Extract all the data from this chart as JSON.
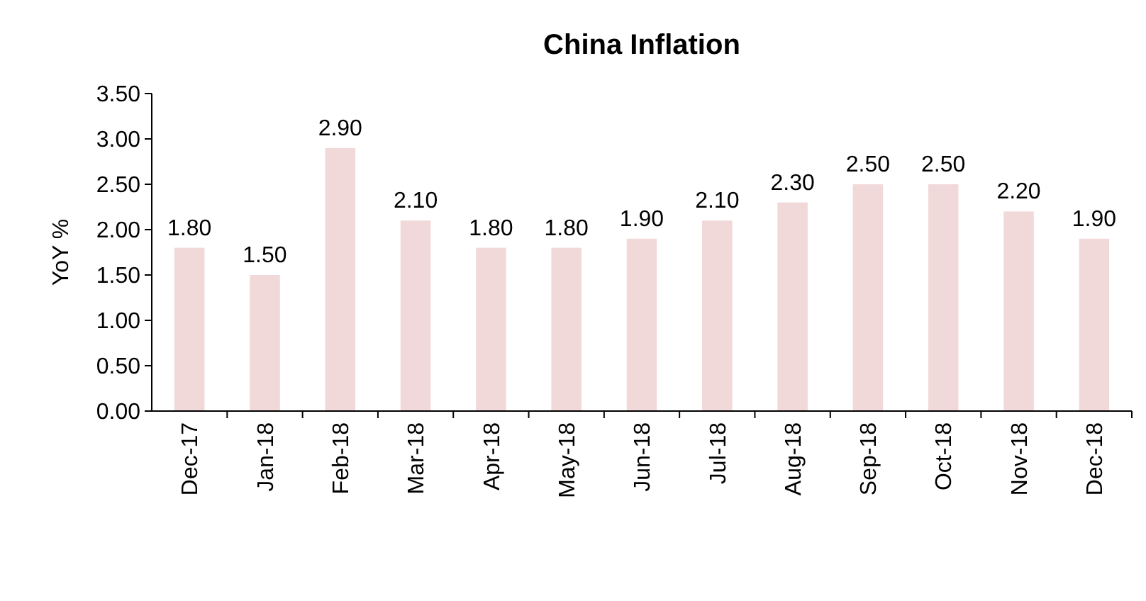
{
  "chart_data": {
    "type": "bar",
    "title": "China Inflation",
    "ylabel": "YoY %",
    "categories": [
      "Dec-17",
      "Jan-18",
      "Feb-18",
      "Mar-18",
      "Apr-18",
      "May-18",
      "Jun-18",
      "Jul-18",
      "Aug-18",
      "Sep-18",
      "Oct-18",
      "Nov-18",
      "Dec-18"
    ],
    "values": [
      1.8,
      1.5,
      2.9,
      2.1,
      1.8,
      1.8,
      1.9,
      2.1,
      2.3,
      2.5,
      2.5,
      2.2,
      1.9
    ],
    "value_labels": [
      "1.80",
      "1.50",
      "2.90",
      "2.10",
      "1.80",
      "1.80",
      "1.90",
      "2.10",
      "2.30",
      "2.50",
      "2.50",
      "2.20",
      "1.90"
    ],
    "color": "#f2d9d9",
    "ylim": [
      0,
      3.5
    ],
    "yticks": [
      {
        "value": 0,
        "label": "0.00"
      },
      {
        "value": 0.5,
        "label": "0.50"
      },
      {
        "value": 1,
        "label": "1.00"
      },
      {
        "value": 1.5,
        "label": "1.50"
      },
      {
        "value": 2,
        "label": "2.00"
      },
      {
        "value": 2.5,
        "label": "2.50"
      },
      {
        "value": 3,
        "label": "3.00"
      },
      {
        "value": 3.5,
        "label": "3.50"
      }
    ],
    "grid": false
  }
}
